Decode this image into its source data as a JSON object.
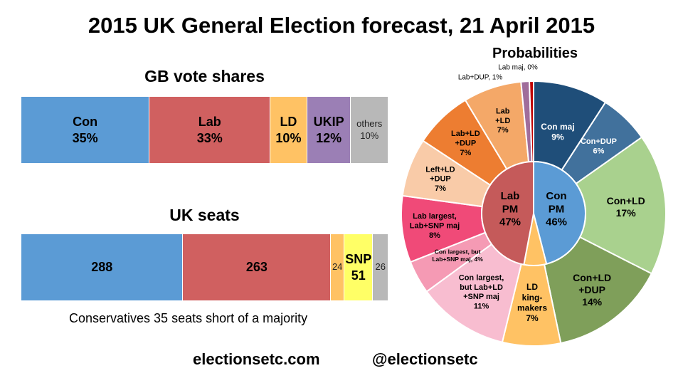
{
  "title": "2015 UK General Election forecast, 21 April 2015",
  "vote_title": "GB vote shares",
  "seats_title": "UK seats",
  "prob_title": "Probabilities",
  "seats_note": "Conservatives 35 seats short of a majority",
  "footer": {
    "site": "electionsetc.com",
    "handle": "@electionsetc"
  },
  "chart_data": [
    {
      "type": "bar",
      "orientation": "horizontal-stacked",
      "title": "GB vote shares",
      "segments": [
        {
          "name": "Con",
          "label": "35%",
          "value": 35,
          "color": "#5b9bd5",
          "bold": true
        },
        {
          "name": "Lab",
          "label": "33%",
          "value": 33,
          "color": "#d06060",
          "bold": true
        },
        {
          "name": "LD",
          "label": "10%",
          "value": 10,
          "color": "#ffc264",
          "bold": true
        },
        {
          "name": "UKIP",
          "label": "12%",
          "value": 12,
          "color": "#9b7fb5",
          "bold": true
        },
        {
          "name": "others",
          "label": "10%",
          "value": 10,
          "color": "#b8b8b8",
          "bold": false
        }
      ]
    },
    {
      "type": "bar",
      "orientation": "horizontal-stacked",
      "title": "UK seats",
      "segments": [
        {
          "name": "",
          "label": "288",
          "value": 288,
          "color": "#5b9bd5",
          "bold": true
        },
        {
          "name": "",
          "label": "263",
          "value": 263,
          "color": "#d06060",
          "bold": true
        },
        {
          "name": "",
          "label": "24",
          "value": 24,
          "color": "#ffc264",
          "bold": false
        },
        {
          "name": "SNP",
          "label": "51",
          "value": 51,
          "color": "#ffff66",
          "bold": true
        },
        {
          "name": "",
          "label": "26",
          "value": 26,
          "color": "#b8b8b8",
          "bold": false
        }
      ]
    },
    {
      "type": "pie",
      "subtype": "nested-donut",
      "title": "Probabilities",
      "inner": [
        {
          "label": "Con\nPM\n46%",
          "value": 46,
          "color": "#5b9bd5"
        },
        {
          "label": "LD",
          "value": 7,
          "color": "#ffc264"
        },
        {
          "label": "Lab\nPM\n47%",
          "value": 47,
          "color": "#c55a5a"
        }
      ],
      "outer": [
        {
          "label": "Con maj\n9%",
          "value": 9,
          "color": "#1f4e79"
        },
        {
          "label": "Con+DUP\n6%",
          "value": 6,
          "color": "#41719c"
        },
        {
          "label": "Con+LD\n17%",
          "value": 17,
          "color": "#a9d18e"
        },
        {
          "label": "Con+LD\n+DUP\n14%",
          "value": 14,
          "color": "#7f9f5a"
        },
        {
          "label": "LD\nking-\nmakers\n7%",
          "value": 7,
          "color": "#ffc264"
        },
        {
          "label": "Con largest,\nbut Lab+LD\n+SNP maj\n11%",
          "value": 11,
          "color": "#f8bdd0"
        },
        {
          "label": "Con largest, but\nLab+SNP maj, 4%",
          "value": 4,
          "color": "#f59ab4"
        },
        {
          "label": "Lab largest,\nLab+SNP maj\n8%",
          "value": 8,
          "color": "#f04a78"
        },
        {
          "label": "Left+LD\n+DUP\n7%",
          "value": 7,
          "color": "#f9cba8"
        },
        {
          "label": "Lab+LD\n+DUP\n7%",
          "value": 7,
          "color": "#ed7d31"
        },
        {
          "label": "Lab\n+LD\n7%",
          "value": 7,
          "color": "#f4a868"
        },
        {
          "label": "Lab+DUP, 1%",
          "value": 1,
          "color": "#a06d9b"
        },
        {
          "label": "Lab maj, 0%",
          "value": 0.5,
          "color": "#c00000"
        }
      ]
    }
  ]
}
